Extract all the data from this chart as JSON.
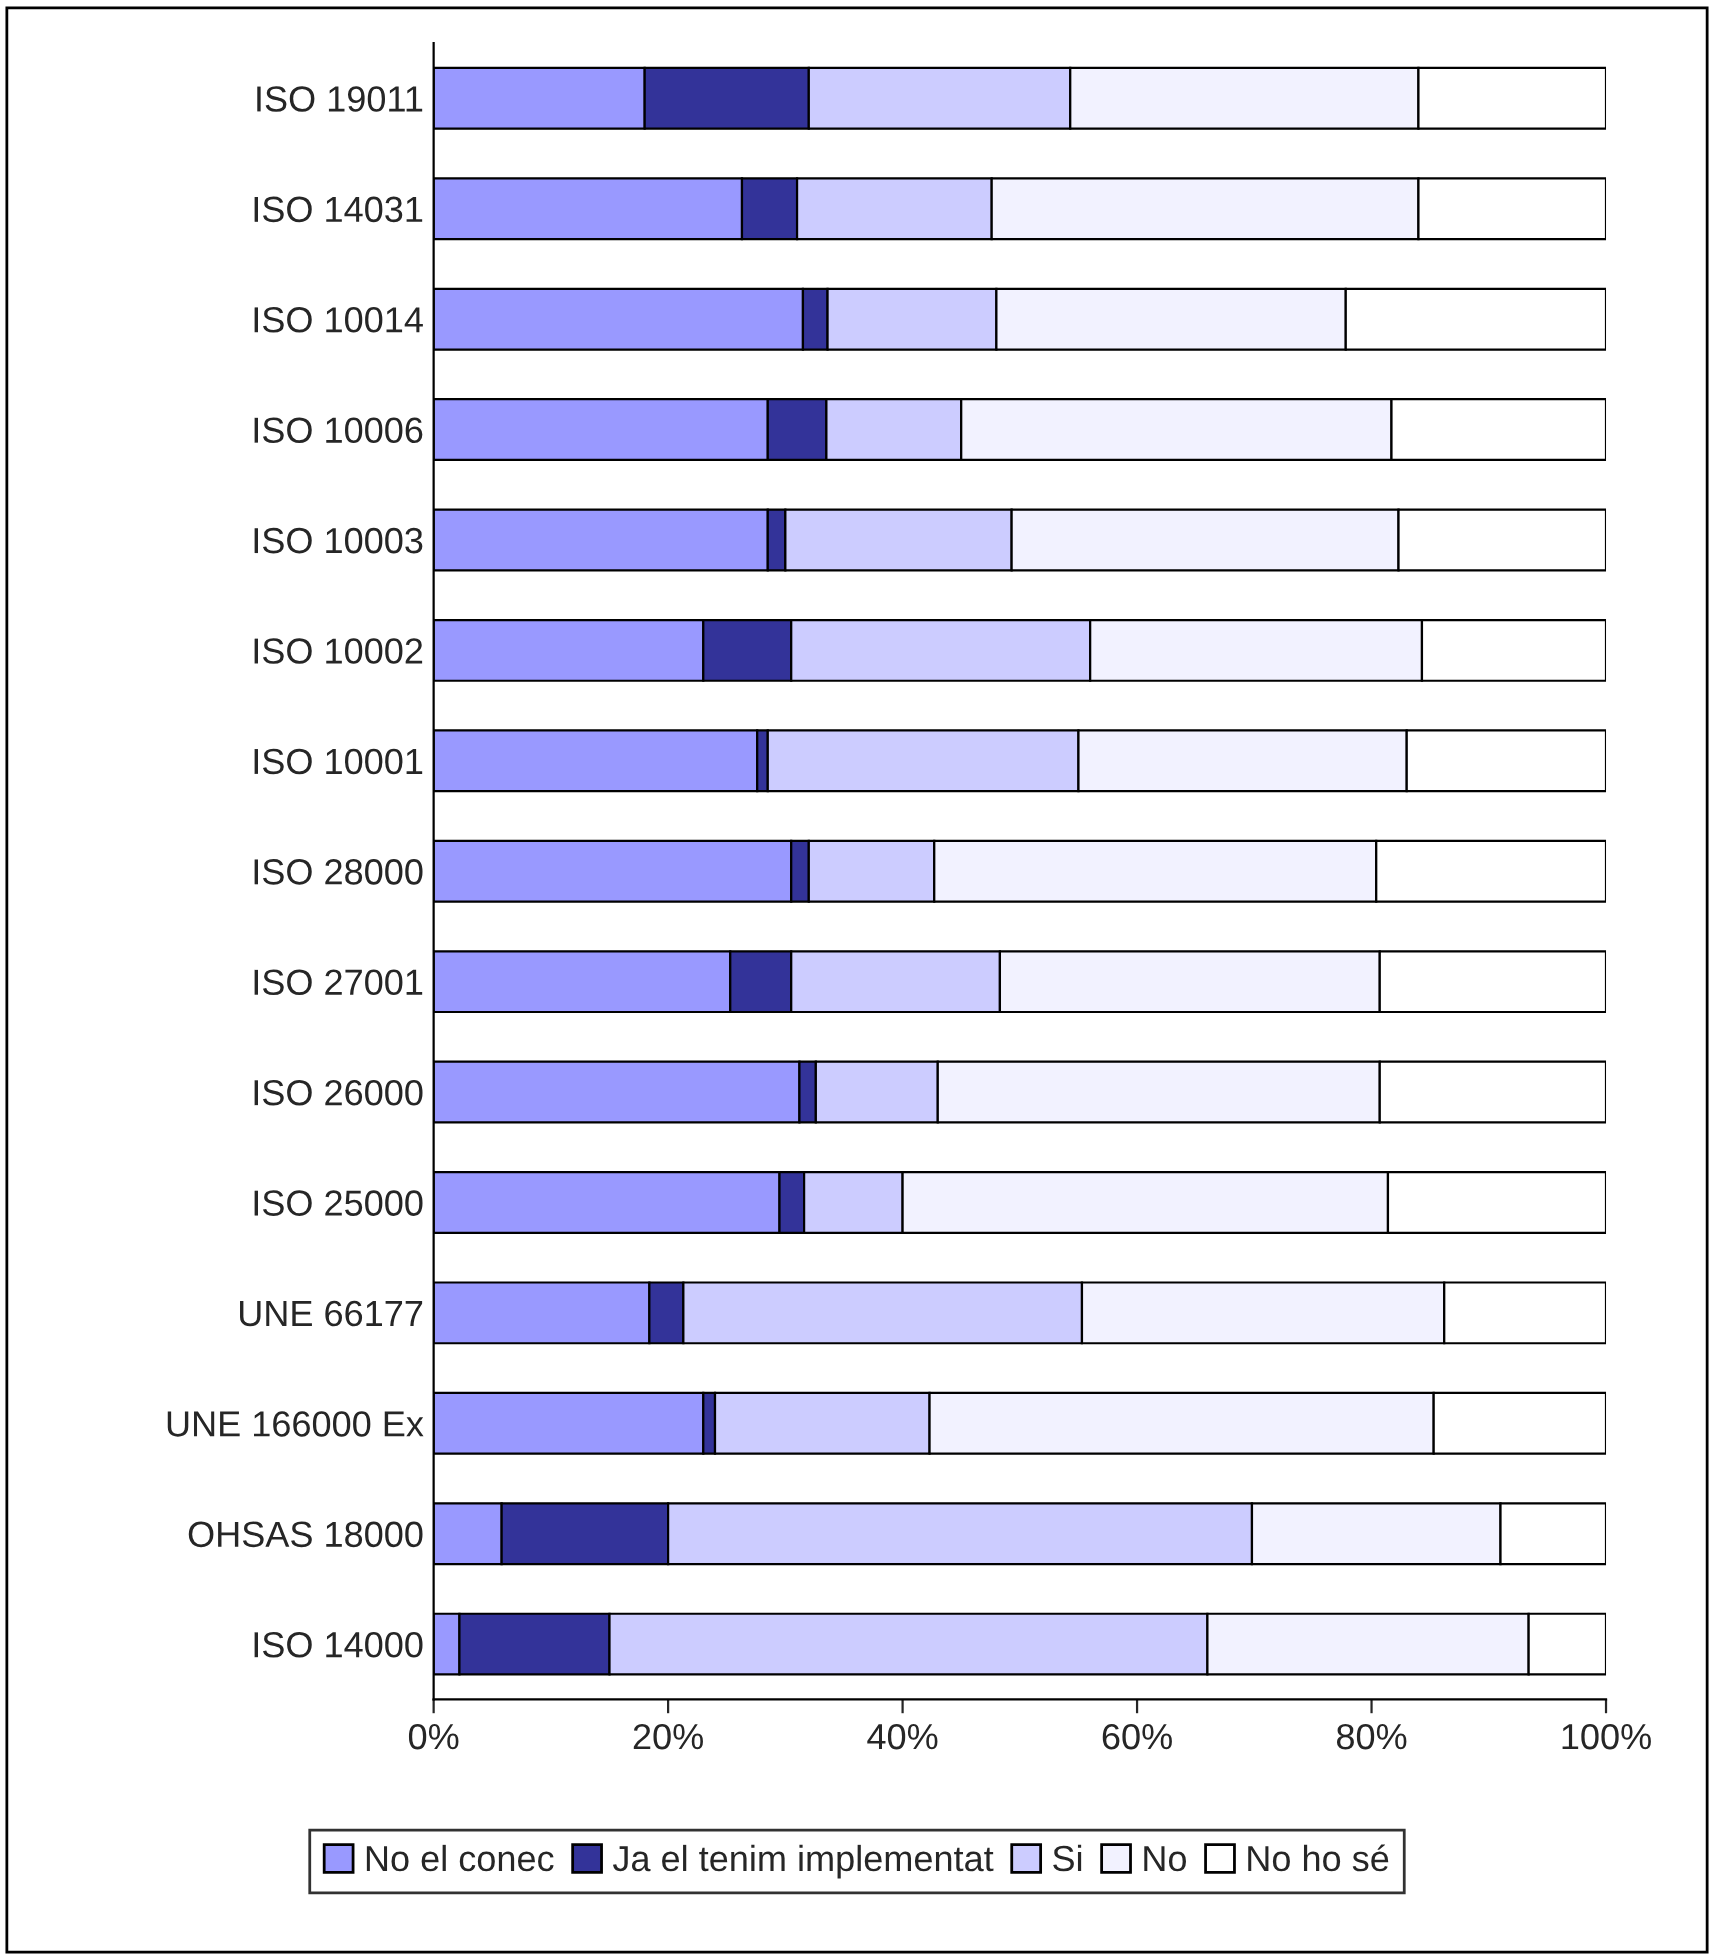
{
  "chart_data": {
    "type": "bar",
    "orientation": "horizontal",
    "stacked": true,
    "categories": [
      "ISO 19011",
      "ISO 14031",
      "ISO 10014",
      "ISO 10006",
      "ISO 10003",
      "ISO 10002",
      "ISO 10001",
      "ISO 28000",
      "ISO 27001",
      "ISO 26000",
      "ISO 25000",
      "UNE 66177",
      "UNE 166000 Ex",
      "OHSAS 18000",
      "ISO 14000"
    ],
    "series": [
      {
        "name": "No el conec",
        "color": "#9999ff",
        "values": [
          18,
          26.3,
          31.5,
          28.5,
          28.5,
          23,
          27.6,
          30.5,
          25.3,
          31.2,
          29.5,
          18.4,
          23,
          5.8,
          2.2
        ]
      },
      {
        "name": "Ja el tenim implementat",
        "color": "#333399",
        "values": [
          14,
          4.7,
          2.1,
          5,
          1.5,
          7.5,
          0.9,
          1.5,
          5.2,
          1.4,
          2.1,
          2.9,
          1,
          14.2,
          12.8
        ]
      },
      {
        "name": "Si",
        "color": "#ccccff",
        "values": [
          22.3,
          16.6,
          14.4,
          11.5,
          19.3,
          25.5,
          26.5,
          10.7,
          17.8,
          10.4,
          8.4,
          34,
          18.3,
          49.8,
          51
        ]
      },
      {
        "name": "No",
        "color": "#f2f2ff",
        "values": [
          29.7,
          36.4,
          29.8,
          36.7,
          33,
          28.3,
          28,
          37.7,
          32.4,
          37.7,
          41.4,
          30.9,
          43,
          21.2,
          27.4
        ]
      },
      {
        "name": "No ho sé",
        "color": "#ffffff",
        "values": [
          16,
          16,
          22.2,
          18.3,
          17.7,
          15.7,
          17,
          19.6,
          19.3,
          19.3,
          18.6,
          13.8,
          14.7,
          9,
          6.6
        ]
      }
    ],
    "xlim": [
      0,
      100
    ],
    "xticks": [
      {
        "value": 0,
        "label": "0%"
      },
      {
        "value": 20,
        "label": "20%"
      },
      {
        "value": 40,
        "label": "40%"
      },
      {
        "value": 60,
        "label": "60%"
      },
      {
        "value": 80,
        "label": "80%"
      },
      {
        "value": 100,
        "label": "100%"
      }
    ],
    "grid": false,
    "legend": "bottom"
  }
}
